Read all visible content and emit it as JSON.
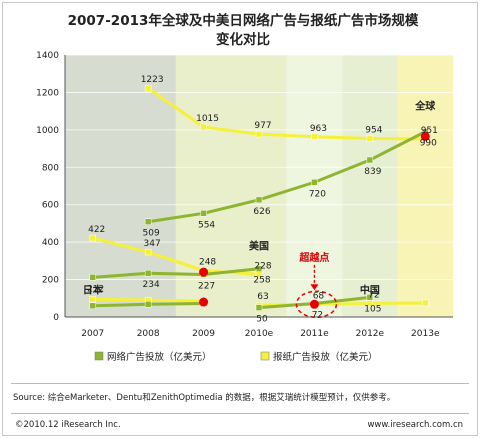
{
  "chart_data": {
    "type": "line",
    "title_lines": [
      "2007-2013年全球及中美日网络广告与报纸广告市场规模",
      "变化对比"
    ],
    "categories": [
      "2007",
      "2008",
      "2009",
      "2010e",
      "2011e",
      "2012e",
      "2013e"
    ],
    "ylim": [
      0,
      1400
    ],
    "yticks": [
      0,
      200,
      400,
      600,
      800,
      1000,
      1200,
      1400
    ],
    "shaded_columns": [
      {
        "from": "2007",
        "to": "2008",
        "color": "#d6dccf"
      },
      {
        "from": "2009",
        "to": "2010e",
        "color": "#e9eecb"
      },
      {
        "from": "2011e",
        "to": "2011e",
        "color": "#eef6e0"
      },
      {
        "from": "2012e",
        "to": "2012e",
        "color": "#e6efd2"
      },
      {
        "from": "2013e",
        "to": "2013e",
        "color": "#f8f4b6"
      }
    ],
    "series": [
      {
        "group": "全球",
        "type": "报纸广告",
        "color": "#f5f13a",
        "x": [
          "2008",
          "2009",
          "2010e",
          "2011e",
          "2012e",
          "2013e"
        ],
        "values": [
          1223,
          1015,
          977,
          963,
          954,
          951
        ],
        "labels": [
          "1223",
          "1015",
          "977",
          "963",
          "954",
          "951"
        ]
      },
      {
        "group": "全球",
        "type": "网络广告",
        "color": "#8db530",
        "x": [
          "2008",
          "2009",
          "2010e",
          "2011e",
          "2012e",
          "2013e"
        ],
        "values": [
          509,
          554,
          626,
          720,
          839,
          990
        ],
        "labels": [
          "509",
          "554",
          "626",
          "720",
          "839",
          "990"
        ]
      },
      {
        "group": "美国",
        "type": "报纸广告",
        "color": "#f5f13a",
        "x": [
          "2007",
          "2008",
          "2009",
          "2010e"
        ],
        "values": [
          422,
          347,
          248,
          228
        ],
        "labels": [
          "422",
          "347",
          "248",
          "228"
        ]
      },
      {
        "group": "美国",
        "type": "网络广告",
        "color": "#8db530",
        "x": [
          "2007",
          "2008",
          "2009",
          "2010e"
        ],
        "values": [
          212,
          234,
          227,
          258
        ],
        "labels": [
          "212",
          "234",
          "227",
          "258"
        ]
      },
      {
        "group": "日本",
        "type": "报纸广告",
        "color": "#f5f13a",
        "x": [
          "2007",
          "2008",
          "2009"
        ],
        "values": [
          95,
          90,
          85
        ],
        "labels": []
      },
      {
        "group": "日本",
        "type": "网络广告",
        "color": "#8db530",
        "x": [
          "2007",
          "2008",
          "2009"
        ],
        "values": [
          60,
          68,
          72
        ],
        "labels": []
      },
      {
        "group": "中国",
        "type": "报纸广告",
        "color": "#f5f13a",
        "x": [
          "2010e",
          "2011e",
          "2012e",
          "2013e"
        ],
        "values": [
          63,
          68,
          72,
          75
        ],
        "labels": [
          "63",
          "68",
          "72",
          ""
        ]
      },
      {
        "group": "中国",
        "type": "网络广告",
        "color": "#8db530",
        "x": [
          "2010e",
          "2011e",
          "2012e"
        ],
        "values": [
          50,
          72,
          105
        ],
        "labels": [
          "50",
          "72",
          "105"
        ]
      }
    ],
    "crossover_points": [
      {
        "x": "2013e",
        "y": 965
      },
      {
        "x": "2009",
        "y": 240
      },
      {
        "x": "2009",
        "y": 80
      },
      {
        "x": "2011e",
        "y": 68
      }
    ],
    "region_labels": [
      {
        "text": "全球",
        "x": "2013e",
        "y": 1110
      },
      {
        "text": "美国",
        "x": "2010e",
        "y": 360
      },
      {
        "text": "日本",
        "x": "2007",
        "y": 125
      },
      {
        "text": "中国",
        "x": "2012e",
        "y": 125
      }
    ],
    "annotation": {
      "text": "超越点",
      "x": "2011e",
      "y": 300
    },
    "legend": {
      "position": "bottom",
      "items": [
        {
          "label": "网络广告投放（亿美元）",
          "color": "#8db530"
        },
        {
          "label": "报纸广告投放（亿美元）",
          "color": "#f5f13a"
        }
      ]
    }
  },
  "source_text": "Source: 综合eMarketer、Dentu和ZenithOptimedia 的数据，根据艾瑞统计模型预计，仅供参考。",
  "footer": {
    "left": "©2010.12 iResearch Inc.",
    "right": "www.iresearch.com.cn"
  }
}
